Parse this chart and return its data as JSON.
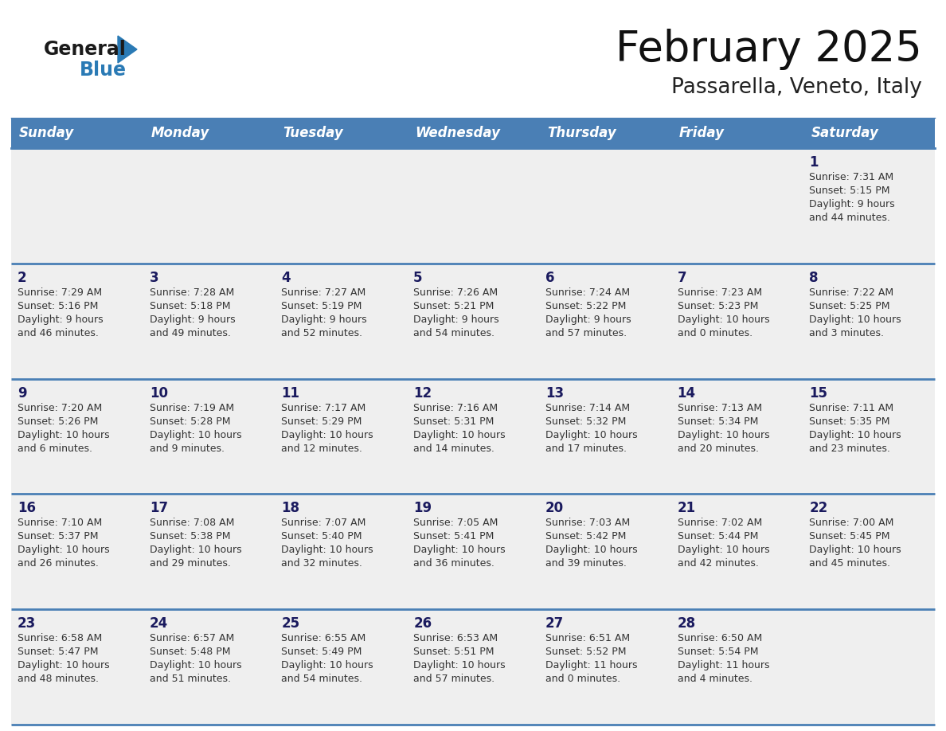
{
  "title": "February 2025",
  "subtitle": "Passarella, Veneto, Italy",
  "days_of_week": [
    "Sunday",
    "Monday",
    "Tuesday",
    "Wednesday",
    "Thursday",
    "Friday",
    "Saturday"
  ],
  "header_bg": "#4a7fb5",
  "header_text": "#ffffff",
  "cell_bg": "#efefef",
  "cell_border_color": "#4a7fb5",
  "text_color": "#333333",
  "day_num_color": "#1a1a5e",
  "logo_general_color": "#1a1a1a",
  "logo_blue_color": "#2a7ab5",
  "weeks": [
    {
      "days": [
        {
          "day": null,
          "sunrise": null,
          "sunset": null,
          "daylight": null
        },
        {
          "day": null,
          "sunrise": null,
          "sunset": null,
          "daylight": null
        },
        {
          "day": null,
          "sunrise": null,
          "sunset": null,
          "daylight": null
        },
        {
          "day": null,
          "sunrise": null,
          "sunset": null,
          "daylight": null
        },
        {
          "day": null,
          "sunrise": null,
          "sunset": null,
          "daylight": null
        },
        {
          "day": null,
          "sunrise": null,
          "sunset": null,
          "daylight": null
        },
        {
          "day": 1,
          "sunrise": "7:31 AM",
          "sunset": "5:15 PM",
          "daylight": "9 hours\nand 44 minutes."
        }
      ]
    },
    {
      "days": [
        {
          "day": 2,
          "sunrise": "7:29 AM",
          "sunset": "5:16 PM",
          "daylight": "9 hours\nand 46 minutes."
        },
        {
          "day": 3,
          "sunrise": "7:28 AM",
          "sunset": "5:18 PM",
          "daylight": "9 hours\nand 49 minutes."
        },
        {
          "day": 4,
          "sunrise": "7:27 AM",
          "sunset": "5:19 PM",
          "daylight": "9 hours\nand 52 minutes."
        },
        {
          "day": 5,
          "sunrise": "7:26 AM",
          "sunset": "5:21 PM",
          "daylight": "9 hours\nand 54 minutes."
        },
        {
          "day": 6,
          "sunrise": "7:24 AM",
          "sunset": "5:22 PM",
          "daylight": "9 hours\nand 57 minutes."
        },
        {
          "day": 7,
          "sunrise": "7:23 AM",
          "sunset": "5:23 PM",
          "daylight": "10 hours\nand 0 minutes."
        },
        {
          "day": 8,
          "sunrise": "7:22 AM",
          "sunset": "5:25 PM",
          "daylight": "10 hours\nand 3 minutes."
        }
      ]
    },
    {
      "days": [
        {
          "day": 9,
          "sunrise": "7:20 AM",
          "sunset": "5:26 PM",
          "daylight": "10 hours\nand 6 minutes."
        },
        {
          "day": 10,
          "sunrise": "7:19 AM",
          "sunset": "5:28 PM",
          "daylight": "10 hours\nand 9 minutes."
        },
        {
          "day": 11,
          "sunrise": "7:17 AM",
          "sunset": "5:29 PM",
          "daylight": "10 hours\nand 12 minutes."
        },
        {
          "day": 12,
          "sunrise": "7:16 AM",
          "sunset": "5:31 PM",
          "daylight": "10 hours\nand 14 minutes."
        },
        {
          "day": 13,
          "sunrise": "7:14 AM",
          "sunset": "5:32 PM",
          "daylight": "10 hours\nand 17 minutes."
        },
        {
          "day": 14,
          "sunrise": "7:13 AM",
          "sunset": "5:34 PM",
          "daylight": "10 hours\nand 20 minutes."
        },
        {
          "day": 15,
          "sunrise": "7:11 AM",
          "sunset": "5:35 PM",
          "daylight": "10 hours\nand 23 minutes."
        }
      ]
    },
    {
      "days": [
        {
          "day": 16,
          "sunrise": "7:10 AM",
          "sunset": "5:37 PM",
          "daylight": "10 hours\nand 26 minutes."
        },
        {
          "day": 17,
          "sunrise": "7:08 AM",
          "sunset": "5:38 PM",
          "daylight": "10 hours\nand 29 minutes."
        },
        {
          "day": 18,
          "sunrise": "7:07 AM",
          "sunset": "5:40 PM",
          "daylight": "10 hours\nand 32 minutes."
        },
        {
          "day": 19,
          "sunrise": "7:05 AM",
          "sunset": "5:41 PM",
          "daylight": "10 hours\nand 36 minutes."
        },
        {
          "day": 20,
          "sunrise": "7:03 AM",
          "sunset": "5:42 PM",
          "daylight": "10 hours\nand 39 minutes."
        },
        {
          "day": 21,
          "sunrise": "7:02 AM",
          "sunset": "5:44 PM",
          "daylight": "10 hours\nand 42 minutes."
        },
        {
          "day": 22,
          "sunrise": "7:00 AM",
          "sunset": "5:45 PM",
          "daylight": "10 hours\nand 45 minutes."
        }
      ]
    },
    {
      "days": [
        {
          "day": 23,
          "sunrise": "6:58 AM",
          "sunset": "5:47 PM",
          "daylight": "10 hours\nand 48 minutes."
        },
        {
          "day": 24,
          "sunrise": "6:57 AM",
          "sunset": "5:48 PM",
          "daylight": "10 hours\nand 51 minutes."
        },
        {
          "day": 25,
          "sunrise": "6:55 AM",
          "sunset": "5:49 PM",
          "daylight": "10 hours\nand 54 minutes."
        },
        {
          "day": 26,
          "sunrise": "6:53 AM",
          "sunset": "5:51 PM",
          "daylight": "10 hours\nand 57 minutes."
        },
        {
          "day": 27,
          "sunrise": "6:51 AM",
          "sunset": "5:52 PM",
          "daylight": "11 hours\nand 0 minutes."
        },
        {
          "day": 28,
          "sunrise": "6:50 AM",
          "sunset": "5:54 PM",
          "daylight": "11 hours\nand 4 minutes."
        },
        {
          "day": null,
          "sunrise": null,
          "sunset": null,
          "daylight": null
        }
      ]
    }
  ]
}
